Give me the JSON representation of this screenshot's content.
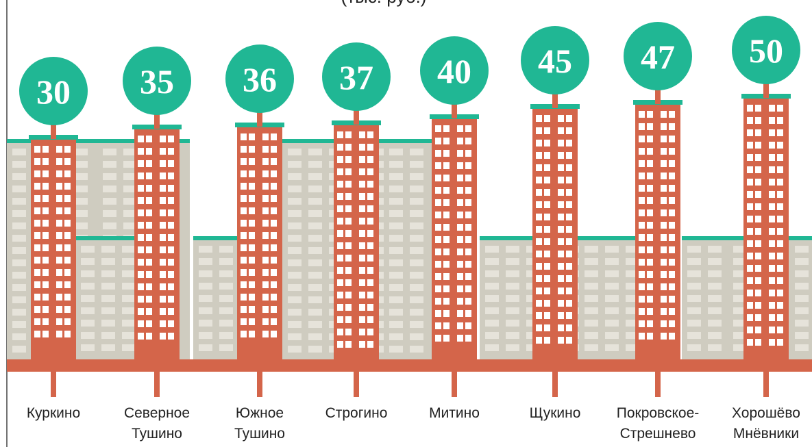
{
  "chart_data": {
    "type": "bar",
    "subtitle": "(тыс. руб.)",
    "categories": [
      [
        "Куркино"
      ],
      [
        "Северное",
        "Тушино"
      ],
      [
        "Южное",
        "Тушино"
      ],
      [
        "Строгино"
      ],
      [
        "Митино"
      ],
      [
        "Щукино"
      ],
      [
        "Покровское-",
        "Стрешнево"
      ],
      [
        "Хорошёво",
        "Мнёвники"
      ]
    ],
    "values": [
      30,
      35,
      36,
      37,
      40,
      45,
      47,
      50
    ],
    "color": "#d4654a",
    "circle_color": "#20b794"
  }
}
